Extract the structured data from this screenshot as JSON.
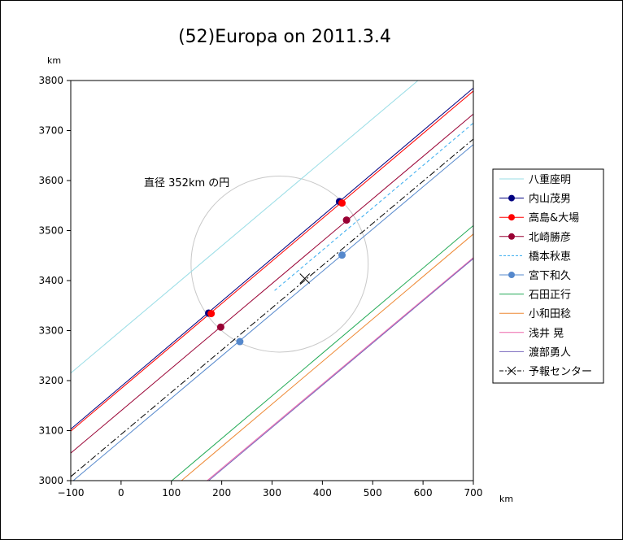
{
  "chart_data": {
    "type": "line",
    "title": "(52)Europa on 2011.3.4",
    "xunit": "km",
    "yunit": "km",
    "xlim": [
      -100,
      700
    ],
    "ylim": [
      3000,
      3800
    ],
    "xticks": [
      -100,
      0,
      100,
      200,
      300,
      400,
      500,
      600,
      700
    ],
    "yticks": [
      3000,
      3100,
      3200,
      3300,
      3400,
      3500,
      3600,
      3700,
      3800
    ],
    "xtick_labels": [
      "−100",
      "0",
      "100",
      "200",
      "300",
      "400",
      "500",
      "600",
      "700"
    ],
    "ytick_labels": [
      "3000",
      "3100",
      "3200",
      "3300",
      "3400",
      "3500",
      "3600",
      "3700",
      "3800"
    ],
    "grid": false,
    "legend_position": "right",
    "annotation": "直径 352km の円",
    "circle": {
      "cx": 315,
      "cy": 3433,
      "r": 176,
      "color": "#c8c8c8"
    },
    "series": [
      {
        "name": "八重座明",
        "color": "#99dde6",
        "style": "solid",
        "marker": "none",
        "lines": [
          [
            [
              -100,
              3215
            ],
            [
              590,
              3800
            ]
          ]
        ]
      },
      {
        "name": "内山茂男",
        "color": "#000080",
        "style": "solid",
        "marker": "circle",
        "lines": [
          [
            [
              -100,
              3103
            ],
            [
              700,
              3785
            ]
          ]
        ],
        "points": [
          [
            174,
            3335
          ],
          [
            434,
            3558
          ]
        ]
      },
      {
        "name": "高島&大場",
        "color": "#ff0000",
        "style": "solid",
        "marker": "circle",
        "lines": [
          [
            [
              -100,
              3099
            ],
            [
              700,
              3779
            ]
          ]
        ],
        "points": [
          [
            179,
            3334
          ],
          [
            439,
            3555
          ]
        ]
      },
      {
        "name": "北崎勝彦",
        "color": "#990033",
        "style": "solid",
        "marker": "circle",
        "lines": [
          [
            [
              -100,
              3055
            ],
            [
              700,
              3733
            ]
          ]
        ],
        "points": [
          [
            198,
            3307
          ],
          [
            448,
            3521
          ]
        ]
      },
      {
        "name": "橋本秋恵",
        "color": "#33aaee",
        "style": "dashed",
        "marker": "none",
        "lines": [
          [
            [
              305,
              3380
            ],
            [
              700,
              3715
            ]
          ]
        ]
      },
      {
        "name": "宮下和久",
        "color": "#5588cc",
        "style": "solid",
        "marker": "circle",
        "lines": [
          [
            [
              -95,
              3000
            ],
            [
              700,
              3672
            ]
          ]
        ],
        "points": [
          [
            236,
            3278
          ],
          [
            439,
            3451
          ]
        ]
      },
      {
        "name": "石田正行",
        "color": "#22aa55",
        "style": "solid",
        "marker": "none",
        "lines": [
          [
            [
              101,
              3000
            ],
            [
              700,
              3510
            ]
          ]
        ]
      },
      {
        "name": "小和田稔",
        "color": "#ee8833",
        "style": "solid",
        "marker": "none",
        "lines": [
          [
            [
              120,
              3000
            ],
            [
              700,
              3493
            ]
          ]
        ]
      },
      {
        "name": "浅井 晃",
        "color": "#ee66aa",
        "style": "solid",
        "marker": "none",
        "lines": [
          [
            [
              171,
              3000
            ],
            [
              700,
              3446
            ]
          ]
        ]
      },
      {
        "name": "渡部勇人",
        "color": "#7766bb",
        "style": "solid",
        "marker": "none",
        "lines": [
          [
            [
              174,
              3000
            ],
            [
              700,
              3444
            ]
          ]
        ]
      },
      {
        "name": "予報センター",
        "color": "#000000",
        "style": "dashdot",
        "marker": "x",
        "lines": [
          [
            [
              -100,
              3008
            ],
            [
              700,
              3683
            ]
          ]
        ],
        "points": [
          [
            365,
            3404
          ]
        ]
      }
    ]
  }
}
